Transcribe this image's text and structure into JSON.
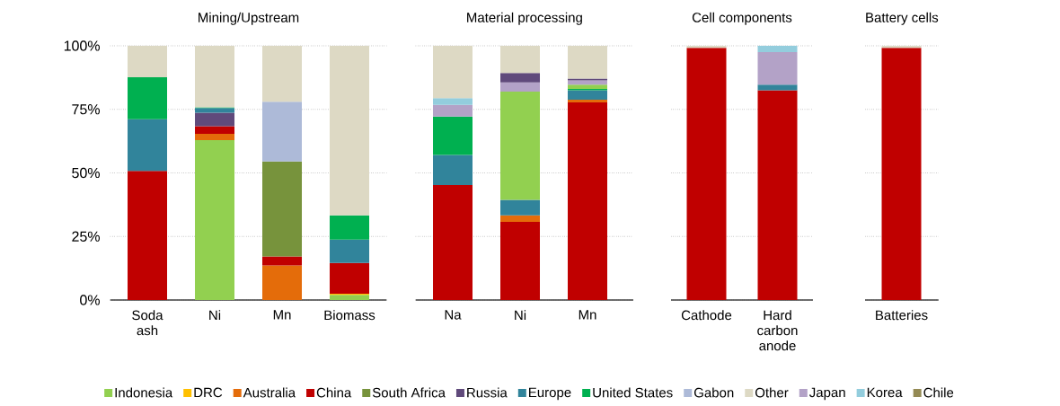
{
  "chart_data": [
    {
      "type": "bar",
      "title": "Mining/Upstream",
      "categories": [
        "Soda ash",
        "Ni",
        "Mn",
        "Biomass"
      ],
      "stacked": true,
      "grid": "y",
      "legend": "bottom",
      "ylim": [
        0,
        100
      ],
      "yticks": [
        {
          "value": 0,
          "label": "0%"
        },
        {
          "value": 25,
          "label": "25%"
        },
        {
          "value": 50,
          "label": "50%"
        },
        {
          "value": 75,
          "label": "75%"
        },
        {
          "value": 100,
          "label": "100%"
        }
      ],
      "series": [
        {
          "name": "Indonesia",
          "color": "#92d050",
          "values": [
            null,
            62.9,
            null,
            2.0
          ]
        },
        {
          "name": "DRC",
          "color": "#ffc000",
          "values": [
            null,
            null,
            null,
            0.5
          ]
        },
        {
          "name": "Australia",
          "color": "#e46c0a",
          "values": [
            null,
            2.5,
            13.6,
            null
          ]
        },
        {
          "name": "China",
          "color": "#c00000",
          "values": [
            50.8,
            3.0,
            3.5,
            12.1
          ]
        },
        {
          "name": "South Africa",
          "color": "#77933c",
          "values": [
            null,
            null,
            37.4,
            null
          ]
        },
        {
          "name": "Russia",
          "color": "#604a7b",
          "values": [
            null,
            5.3,
            null,
            null
          ]
        },
        {
          "name": "Europe",
          "color": "#31849b",
          "values": [
            20.3,
            1.8,
            null,
            9.2
          ]
        },
        {
          "name": "United States",
          "color": "#00b050",
          "values": [
            16.5,
            0.3,
            null,
            9.5
          ]
        },
        {
          "name": "Gabon",
          "color": "#adbad8",
          "values": [
            null,
            null,
            23.5,
            null
          ]
        },
        {
          "name": "Other",
          "color": "#ddd9c4",
          "values": [
            12.4,
            24.2,
            22.0,
            66.7
          ]
        },
        {
          "name": "Japan",
          "color": "#b3a2c7",
          "values": [
            null,
            null,
            null,
            null
          ]
        },
        {
          "name": "Korea",
          "color": "#93cddd",
          "values": [
            null,
            null,
            null,
            null
          ]
        },
        {
          "name": "Chile",
          "color": "#948a54",
          "values": [
            null,
            null,
            null,
            null
          ]
        }
      ]
    },
    {
      "type": "bar",
      "title": "Material processing",
      "categories": [
        "Na",
        "Ni",
        "Mn"
      ],
      "stacked": true,
      "grid": "y",
      "tick_labels": "x",
      "ylim": [
        0,
        100
      ],
      "yticks": [
        {
          "value": 0,
          "label": null
        },
        {
          "value": 25,
          "label": null
        },
        {
          "value": 50,
          "label": null
        },
        {
          "value": 75,
          "label": null
        },
        {
          "value": 100,
          "label": null
        }
      ],
      "series": [
        {
          "color": "#c00000",
          "values": [
            45.2,
            30.7,
            77.7
          ]
        },
        {
          "color": "#e46c0a",
          "values": [
            null,
            2.6,
            1.1
          ]
        },
        {
          "color": "#31849b",
          "values": [
            11.9,
            6.1,
            3.7
          ]
        },
        {
          "color": "#00b050",
          "values": [
            15.1,
            null,
            0.5
          ]
        },
        {
          "color": "#92d050",
          "values": [
            null,
            42.6,
            1.7
          ]
        },
        {
          "color": "#b3a2c7",
          "values": [
            4.6,
            3.6,
            1.7
          ]
        },
        {
          "color": "#93cddd",
          "values": [
            2.6,
            null,
            null
          ]
        },
        {
          "color": "#604a7b",
          "values": [
            null,
            3.7,
            0.7
          ]
        },
        {
          "color": "#ddd9c4",
          "values": [
            20.6,
            10.7,
            12.9
          ]
        }
      ]
    },
    {
      "type": "bar",
      "title": "Cell components",
      "categories": [
        "Cathode",
        "Hard carbon anode"
      ],
      "stacked": true,
      "grid": "y",
      "tick_labels": "x",
      "ylim": [
        0,
        100
      ],
      "yticks": [
        {
          "value": 0,
          "label": null
        },
        {
          "value": 25,
          "label": null
        },
        {
          "value": 50,
          "label": null
        },
        {
          "value": 75,
          "label": null
        },
        {
          "value": 100,
          "label": null
        }
      ],
      "series": [
        {
          "color": "#c00000",
          "values": [
            99.2,
            82.5
          ]
        },
        {
          "color": "#31849b",
          "values": [
            null,
            2.2
          ]
        },
        {
          "color": "#b3a2c7",
          "values": [
            null,
            12.8
          ]
        },
        {
          "color": "#93cddd",
          "values": [
            null,
            2.5
          ]
        },
        {
          "color": "#ddd9c4",
          "values": [
            0.8,
            null
          ]
        }
      ]
    },
    {
      "type": "bar",
      "title": "Battery cells",
      "categories": [
        "Batteries"
      ],
      "stacked": true,
      "grid": "y",
      "tick_labels": "x",
      "ylim": [
        0,
        100
      ],
      "yticks": [
        {
          "value": 0,
          "label": null
        },
        {
          "value": 25,
          "label": null
        },
        {
          "value": 50,
          "label": null
        },
        {
          "value": 75,
          "label": null
        },
        {
          "value": 100,
          "label": null
        }
      ],
      "series": [
        {
          "color": "#c00000",
          "values": [
            99.2
          ]
        },
        {
          "color": "#ddd9c4",
          "values": [
            0.8
          ]
        }
      ]
    }
  ]
}
